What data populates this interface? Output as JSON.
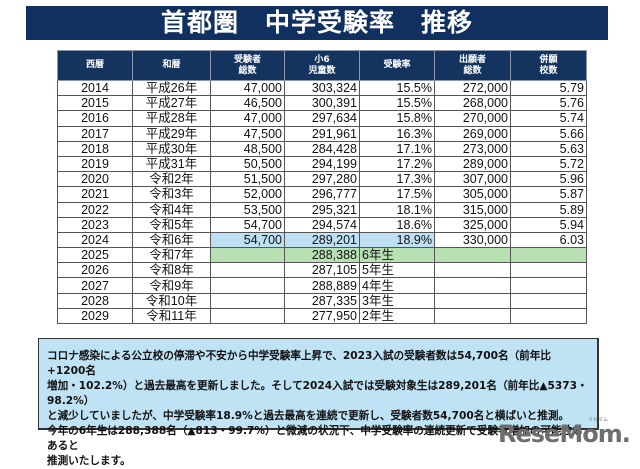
{
  "title": "首都圏　中学受験率　推移",
  "table": {
    "headers": [
      [
        "西暦"
      ],
      [
        "和暦"
      ],
      [
        "受験者",
        "総数"
      ],
      [
        "小6",
        "児童数"
      ],
      [
        "受験率"
      ],
      [
        "出願者",
        "総数"
      ],
      [
        "併願",
        "校数"
      ]
    ],
    "rows": [
      {
        "year": "2014",
        "era": "平成26年",
        "examinees": "47,000",
        "grade6": "303,324",
        "rate": "15.5%",
        "applicants": "272,000",
        "schools": "5.79"
      },
      {
        "year": "2015",
        "era": "平成27年",
        "examinees": "46,500",
        "grade6": "300,391",
        "rate": "15.5%",
        "applicants": "268,000",
        "schools": "5.76"
      },
      {
        "year": "2016",
        "era": "平成28年",
        "examinees": "47,000",
        "grade6": "297,634",
        "rate": "15.8%",
        "applicants": "270,000",
        "schools": "5.74"
      },
      {
        "year": "2017",
        "era": "平成29年",
        "examinees": "47,500",
        "grade6": "291,961",
        "rate": "16.3%",
        "applicants": "269,000",
        "schools": "5.66"
      },
      {
        "year": "2018",
        "era": "平成30年",
        "examinees": "48,500",
        "grade6": "284,428",
        "rate": "17.1%",
        "applicants": "273,000",
        "schools": "5.63"
      },
      {
        "year": "2019",
        "era": "平成31年",
        "examinees": "50,500",
        "grade6": "294,199",
        "rate": "17.2%",
        "applicants": "289,000",
        "schools": "5.72"
      },
      {
        "year": "2020",
        "era": "令和2年",
        "examinees": "51,500",
        "grade6": "297,280",
        "rate": "17.3%",
        "applicants": "307,000",
        "schools": "5.96"
      },
      {
        "year": "2021",
        "era": "令和3年",
        "examinees": "52,000",
        "grade6": "296,777",
        "rate": "17.5%",
        "applicants": "305,000",
        "schools": "5.87"
      },
      {
        "year": "2022",
        "era": "令和4年",
        "examinees": "53,500",
        "grade6": "295,321",
        "rate": "18.1%",
        "applicants": "315,000",
        "schools": "5.89"
      },
      {
        "year": "2023",
        "era": "令和5年",
        "examinees": "54,700",
        "grade6": "294,574",
        "rate": "18.6%",
        "applicants": "325,000",
        "schools": "5.94"
      },
      {
        "year": "2024",
        "era": "令和6年",
        "examinees": "54,700",
        "grade6": "289,201",
        "rate": "18.9%",
        "applicants": "330,000",
        "schools": "6.03"
      },
      {
        "year": "2025",
        "era": "令和7年",
        "examinees": "",
        "grade6": "288,388",
        "rate": "6年生",
        "applicants": "",
        "schools": ""
      },
      {
        "year": "2026",
        "era": "令和8年",
        "examinees": "",
        "grade6": "287,105",
        "rate": "5年生",
        "applicants": "",
        "schools": ""
      },
      {
        "year": "2027",
        "era": "令和9年",
        "examinees": "",
        "grade6": "288,889",
        "rate": "4年生",
        "applicants": "",
        "schools": ""
      },
      {
        "year": "2028",
        "era": "令和10年",
        "examinees": "",
        "grade6": "287,335",
        "rate": "3年生",
        "applicants": "",
        "schools": ""
      },
      {
        "year": "2029",
        "era": "令和11年",
        "examinees": "",
        "grade6": "277,950",
        "rate": "2年生",
        "applicants": "",
        "schools": ""
      }
    ]
  },
  "highlight": {
    "blue": "#bfe0f3",
    "green": "#b8e0b2",
    "header": "#14345f"
  },
  "note": {
    "lines": [
      "コロナ感染による公立校の停滞や不安から中学受験率上昇で、2023入試の受験者数は54,700名（前年比+1200名",
      "増加・102.2%）と過去最高を更新しました。そして2024入試では受験対象生は289,201名（前年比▲5373・98.2%）",
      "と減少していましたが、中学受験率18.9%と過去最高を連続で更新し、受験者数54,700名と横ばいと推測。",
      "今年の6年生は288,388名（▲813・99.7%）と微減の状況下、中学受験率の連続更新で受験者増加の可能性もあると",
      "推測いたします。"
    ]
  },
  "logo": {
    "text": "ReseMom.",
    "ruby": "リセマム"
  }
}
